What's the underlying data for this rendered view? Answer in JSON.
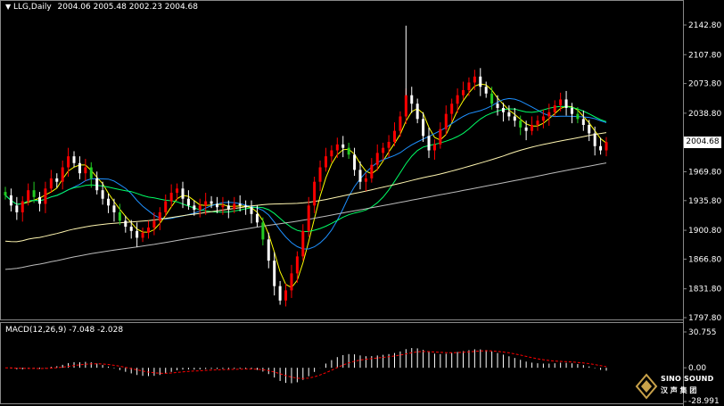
{
  "header": {
    "symbol": "LLG,Daily",
    "ohlc": "2004.06 2005.48 2002.23 2004.68",
    "arrow": "triangle-down-icon"
  },
  "macd_header": {
    "label": "MACD(12,26,9) -7.048 -2.028"
  },
  "current_price": "2004.68",
  "colors": {
    "background": "#000000",
    "bull_candle": "#ffffff",
    "bear_candle": "#ff0000",
    "drop_candle": "#22cc22",
    "ma_fast": "#ffff00",
    "ma_blue": "#1e90ff",
    "ma_green": "#00ff66",
    "ma_cream": "#fff6b0",
    "ma_gray": "#bbbbbb",
    "macd_signal": "#ff0000",
    "macd_hist": "#ffffff"
  },
  "logo": {
    "line1": "SINO SOUND",
    "line2": "汉 声 集 团"
  },
  "chart_data": [
    {
      "type": "candlestick",
      "title": "LLG,Daily",
      "y_ticks": [
        "2142.80",
        "2107.80",
        "2073.80",
        "2038.80",
        "2004.68",
        "1969.80",
        "1935.80",
        "1900.80",
        "1866.80",
        "1831.80",
        "1797.80"
      ],
      "ylim": [
        1797.8,
        2142.8
      ],
      "close": [
        1942,
        1930,
        1922,
        1935,
        1948,
        1940,
        1932,
        1950,
        1962,
        1958,
        1975,
        1988,
        1980,
        1968,
        1975,
        1962,
        1948,
        1938,
        1930,
        1922,
        1912,
        1905,
        1900,
        1892,
        1898,
        1904,
        1912,
        1922,
        1935,
        1945,
        1950,
        1938,
        1930,
        1925,
        1930,
        1935,
        1932,
        1928,
        1930,
        1926,
        1932,
        1930,
        1928,
        1920,
        1910,
        1890,
        1865,
        1835,
        1818,
        1830,
        1850,
        1870,
        1900,
        1930,
        1958,
        1975,
        1988,
        1995,
        2002,
        1998,
        1990,
        1972,
        1958,
        1962,
        1978,
        1992,
        1998,
        2005,
        2018,
        2035,
        2060,
        2050,
        2032,
        2012,
        1995,
        2002,
        2020,
        2038,
        2050,
        2060,
        2066,
        2075,
        2082,
        2070,
        2062,
        2050,
        2045,
        2040,
        2035,
        2030,
        2022,
        2018,
        2025,
        2030,
        2035,
        2040,
        2048,
        2055,
        2045,
        2038,
        2032,
        2025,
        2015,
        2000,
        1995,
        2004.68
      ],
      "ma_series": [
        {
          "name": "",
          "color": "yellow"
        },
        {
          "name": "",
          "color": "blue"
        },
        {
          "name": "",
          "color": "green"
        },
        {
          "name": "",
          "color": "cream"
        },
        {
          "name": "",
          "color": "gray"
        }
      ]
    },
    {
      "type": "bar",
      "title": "MACD(12,26,9) -7.048 -2.028",
      "y_ticks": [
        "30.755",
        "0.00",
        "-28.991"
      ],
      "ylim": [
        -28.991,
        30.755
      ]
    }
  ]
}
